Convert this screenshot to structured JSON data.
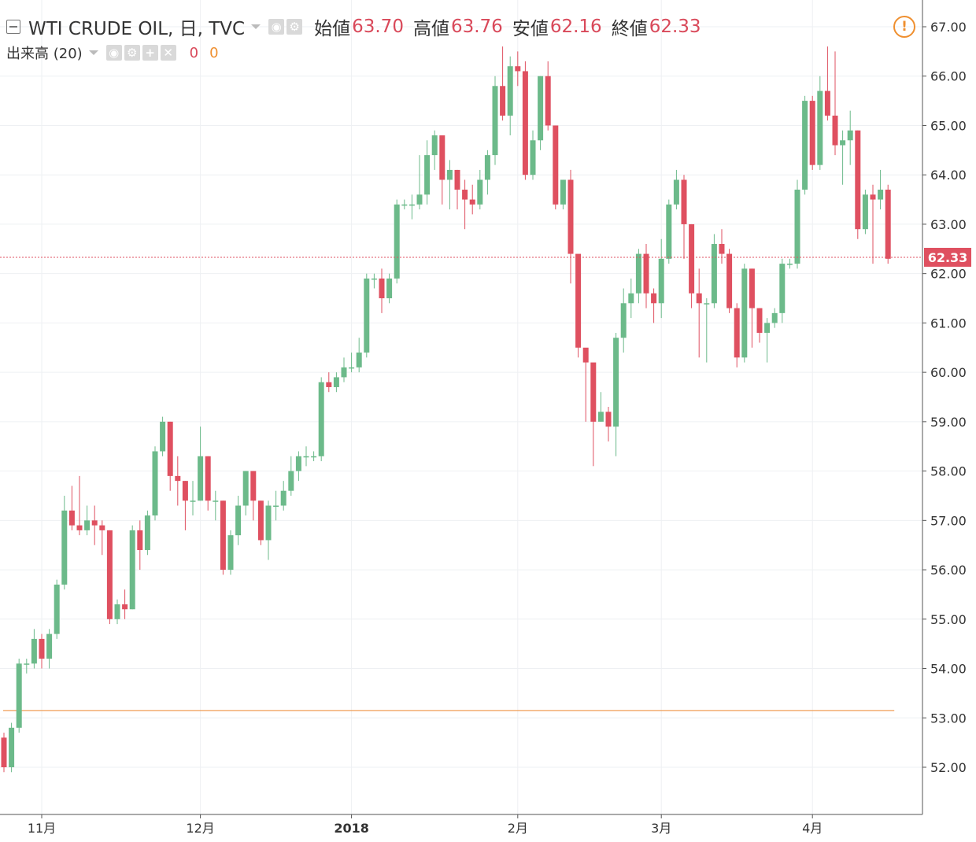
{
  "header": {
    "symbol": "WTI CRUDE OIL, 日, TVC",
    "open_label": "始値",
    "open": "63.70",
    "high_label": "高値",
    "high": "63.76",
    "low_label": "安値",
    "low": "62.16",
    "close_label": "終値",
    "close": "62.33",
    "volume_label": "出来高 (20)",
    "volume_value1": "0",
    "volume_value2": "0",
    "warning_icon": "!"
  },
  "colors": {
    "up": "#6cba8a",
    "down": "#df5060",
    "grid": "#eef0f3",
    "axis": "#555555",
    "price_line": "#df5060",
    "volume_ma": "#ef9a4f"
  },
  "chart_data": {
    "type": "candlestick",
    "title": "WTI CRUDE OIL, 日, TVC",
    "ylim": [
      51.0,
      67.3
    ],
    "y_ticks": [
      "52.00",
      "53.00",
      "54.00",
      "55.00",
      "56.00",
      "57.00",
      "58.00",
      "59.00",
      "60.00",
      "61.00",
      "62.00",
      "63.00",
      "64.00",
      "65.00",
      "66.00",
      "67.00"
    ],
    "x_ticks": [
      {
        "label": "11月",
        "index": 5,
        "bold": false
      },
      {
        "label": "12月",
        "index": 26,
        "bold": false
      },
      {
        "label": "2018",
        "index": 46,
        "bold": true
      },
      {
        "label": "2月",
        "index": 68,
        "bold": false
      },
      {
        "label": "3月",
        "index": 87,
        "bold": false
      },
      {
        "label": "4月",
        "index": 107,
        "bold": false
      }
    ],
    "last_price": "62.33",
    "volume_ma_level": 53.15,
    "candles": [
      [
        52.6,
        52.0,
        52.7,
        51.9
      ],
      [
        52.0,
        52.8,
        52.9,
        51.9
      ],
      [
        52.8,
        54.1,
        54.2,
        52.7
      ],
      [
        54.1,
        54.1,
        54.2,
        53.9
      ],
      [
        54.1,
        54.6,
        54.8,
        54.0
      ],
      [
        54.6,
        54.2,
        54.7,
        54.0
      ],
      [
        54.2,
        54.7,
        54.8,
        54.0
      ],
      [
        54.7,
        55.7,
        55.8,
        54.6
      ],
      [
        55.7,
        57.2,
        57.5,
        55.6
      ],
      [
        57.2,
        56.9,
        57.7,
        56.8
      ],
      [
        56.9,
        56.8,
        57.9,
        56.7
      ],
      [
        56.8,
        57.0,
        57.3,
        56.7
      ],
      [
        57.0,
        56.9,
        57.3,
        56.5
      ],
      [
        56.9,
        56.8,
        57.0,
        56.3
      ],
      [
        56.8,
        55.0,
        56.8,
        54.9
      ],
      [
        55.0,
        55.3,
        55.4,
        54.9
      ],
      [
        55.3,
        55.2,
        55.6,
        55.0
      ],
      [
        55.2,
        56.8,
        56.9,
        55.2
      ],
      [
        56.8,
        56.4,
        57.0,
        56.0
      ],
      [
        56.4,
        57.1,
        57.2,
        56.3
      ],
      [
        57.1,
        58.4,
        58.5,
        57.0
      ],
      [
        58.4,
        59.0,
        59.1,
        58.3
      ],
      [
        59.0,
        57.9,
        59.0,
        57.6
      ],
      [
        57.9,
        57.8,
        58.3,
        57.3
      ],
      [
        57.8,
        57.4,
        57.8,
        56.8
      ],
      [
        57.4,
        57.4,
        57.8,
        57.1
      ],
      [
        57.4,
        58.3,
        58.9,
        57.4
      ],
      [
        58.3,
        57.4,
        58.3,
        57.2
      ],
      [
        57.4,
        57.4,
        57.6,
        57.0
      ],
      [
        57.4,
        56.0,
        57.4,
        55.9
      ],
      [
        56.0,
        56.7,
        56.8,
        55.9
      ],
      [
        56.7,
        57.3,
        57.5,
        56.5
      ],
      [
        57.3,
        58.0,
        58.0,
        57.1
      ],
      [
        58.0,
        57.4,
        58.0,
        57.0
      ],
      [
        57.4,
        56.6,
        57.4,
        56.5
      ],
      [
        56.6,
        57.3,
        57.4,
        56.2
      ],
      [
        57.3,
        57.3,
        57.6,
        57.0
      ],
      [
        57.3,
        57.6,
        57.8,
        57.2
      ],
      [
        57.6,
        58.0,
        58.3,
        57.5
      ],
      [
        58.0,
        58.3,
        58.4,
        57.8
      ],
      [
        58.3,
        58.3,
        58.5,
        58.1
      ],
      [
        58.3,
        58.3,
        58.4,
        58.2
      ],
      [
        58.3,
        59.8,
        59.9,
        58.2
      ],
      [
        59.8,
        59.7,
        60.0,
        59.6
      ],
      [
        59.7,
        59.9,
        60.0,
        59.6
      ],
      [
        59.9,
        60.1,
        60.3,
        59.8
      ],
      [
        60.1,
        60.1,
        60.4,
        60.0
      ],
      [
        60.1,
        60.4,
        60.7,
        60.0
      ],
      [
        60.4,
        61.9,
        62.0,
        60.3
      ],
      [
        61.9,
        61.9,
        62.0,
        61.7
      ],
      [
        61.9,
        61.5,
        62.1,
        61.2
      ],
      [
        61.5,
        61.9,
        62.0,
        61.4
      ],
      [
        61.9,
        63.4,
        63.5,
        61.8
      ],
      [
        63.4,
        63.4,
        63.5,
        63.3
      ],
      [
        63.4,
        63.4,
        63.6,
        63.1
      ],
      [
        63.4,
        63.6,
        64.4,
        63.3
      ],
      [
        63.6,
        64.4,
        64.7,
        63.4
      ],
      [
        64.4,
        64.8,
        64.9,
        64.1
      ],
      [
        64.8,
        63.9,
        64.8,
        63.4
      ],
      [
        63.9,
        64.1,
        64.3,
        63.3
      ],
      [
        64.1,
        63.7,
        64.1,
        63.3
      ],
      [
        63.7,
        63.5,
        63.9,
        62.9
      ],
      [
        63.5,
        63.4,
        63.8,
        63.2
      ],
      [
        63.4,
        63.9,
        64.1,
        63.3
      ],
      [
        63.9,
        64.4,
        64.5,
        63.6
      ],
      [
        64.4,
        65.8,
        66.0,
        64.2
      ],
      [
        65.8,
        65.2,
        66.6,
        65.1
      ],
      [
        65.2,
        66.2,
        66.4,
        64.8
      ],
      [
        66.2,
        66.1,
        66.5,
        65.8
      ],
      [
        66.1,
        64.0,
        66.3,
        63.9
      ],
      [
        64.0,
        64.7,
        64.9,
        63.9
      ],
      [
        64.7,
        66.0,
        66.0,
        64.5
      ],
      [
        66.0,
        65.0,
        66.3,
        64.9
      ],
      [
        65.0,
        63.4,
        65.0,
        63.3
      ],
      [
        63.4,
        63.9,
        63.9,
        63.3
      ],
      [
        63.9,
        62.4,
        64.1,
        61.8
      ],
      [
        62.4,
        60.5,
        62.2,
        60.3
      ],
      [
        60.5,
        60.2,
        60.4,
        59.0
      ],
      [
        60.2,
        59.0,
        59.9,
        58.1
      ],
      [
        59.0,
        59.2,
        59.6,
        59.0
      ],
      [
        59.2,
        58.9,
        59.3,
        58.6
      ],
      [
        58.9,
        60.7,
        60.8,
        58.3
      ],
      [
        60.7,
        61.4,
        61.7,
        60.4
      ],
      [
        61.4,
        61.6,
        61.9,
        61.1
      ],
      [
        61.6,
        62.4,
        62.5,
        61.4
      ],
      [
        62.4,
        61.6,
        62.6,
        61.3
      ],
      [
        61.6,
        61.4,
        61.7,
        61.0
      ],
      [
        61.4,
        62.3,
        62.7,
        61.1
      ],
      [
        62.3,
        63.4,
        63.5,
        62.2
      ],
      [
        63.4,
        63.9,
        64.1,
        63.3
      ],
      [
        63.9,
        63.0,
        64.0,
        62.3
      ],
      [
        63.0,
        61.6,
        63.0,
        61.3
      ],
      [
        61.6,
        61.4,
        62.1,
        60.3
      ],
      [
        61.4,
        61.4,
        61.5,
        60.2
      ],
      [
        61.4,
        62.6,
        62.8,
        61.3
      ],
      [
        62.6,
        62.4,
        62.9,
        62.2
      ],
      [
        62.4,
        61.3,
        62.5,
        61.2
      ],
      [
        61.3,
        60.3,
        61.4,
        60.1
      ],
      [
        60.3,
        62.1,
        62.2,
        60.2
      ],
      [
        62.1,
        61.3,
        62.1,
        60.5
      ],
      [
        61.3,
        60.8,
        61.3,
        60.6
      ],
      [
        60.8,
        61.0,
        61.1,
        60.2
      ],
      [
        61.0,
        61.2,
        61.3,
        60.9
      ],
      [
        61.2,
        62.2,
        62.3,
        61.0
      ],
      [
        62.2,
        62.2,
        62.3,
        62.1
      ],
      [
        62.2,
        63.7,
        63.9,
        62.1
      ],
      [
        63.7,
        65.5,
        65.6,
        63.6
      ],
      [
        65.5,
        64.2,
        65.6,
        64.1
      ],
      [
        64.2,
        65.7,
        66.0,
        64.1
      ],
      [
        65.7,
        65.2,
        66.6,
        65.1
      ],
      [
        65.2,
        64.6,
        66.5,
        64.4
      ],
      [
        64.6,
        64.7,
        64.9,
        63.8
      ],
      [
        64.7,
        64.9,
        65.3,
        64.2
      ],
      [
        64.9,
        62.9,
        64.9,
        62.7
      ],
      [
        62.9,
        63.6,
        63.7,
        62.8
      ],
      [
        63.6,
        63.5,
        63.8,
        62.2
      ],
      [
        63.5,
        63.7,
        64.1,
        63.3
      ],
      [
        63.7,
        62.3,
        63.8,
        62.2
      ]
    ]
  }
}
